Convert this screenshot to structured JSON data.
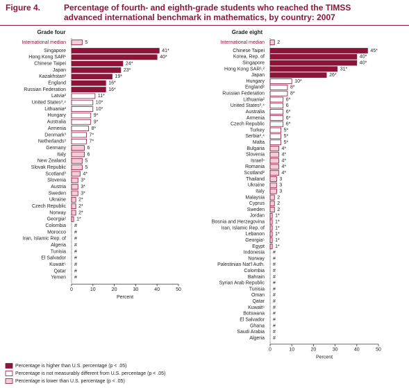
{
  "figure_label": "Figure 4.",
  "title": "Percentage of fourth- and eighth-grade students who reached the TIMSS advanced international benchmark in mathematics, by country: 2007",
  "legend": [
    {
      "label": "Percentage is higher than U.S. percentage (p < .05)",
      "color": "#8b1538"
    },
    {
      "label": "Percentage is not measurably different from U.S. percentage (p < .05)",
      "color": "#ffffff"
    },
    {
      "label": "Percentage is lower than U.S. percentage (p < .05)",
      "color": "#f6cbd8"
    }
  ],
  "chart_data": [
    {
      "type": "bar",
      "orientation": "horizontal",
      "title": "Grade four",
      "categories": [
        "International median",
        "Singapore",
        "Hong Kong SAR¹",
        "Chinese Taipei",
        "Japan",
        "Kazakhstan²",
        "England",
        "Russian Federation",
        "Latvia²",
        "United States³,⁴",
        "Lithuania²",
        "Hungary",
        "Australia",
        "Armenia",
        "Denmark³",
        "Netherlands³",
        "Germany",
        "Italy",
        "New Zealand",
        "Slovak Republic",
        "Scotland³",
        "Slovenia",
        "Austria",
        "Sweden",
        "Ukraine",
        "Czech Republic",
        "Norway",
        "Georgia²",
        "Colombia",
        "Morocco",
        "Iran, Islamic Rep. of",
        "Algeria",
        "Tunisia",
        "El Salvador",
        "Kuwait⁵",
        "Qatar",
        "Yemen"
      ],
      "values": [
        5,
        41,
        40,
        24,
        23,
        19,
        16,
        16,
        11,
        10,
        10,
        9,
        9,
        8,
        7,
        7,
        6,
        6,
        5,
        5,
        4,
        3,
        3,
        3,
        2,
        2,
        2,
        1,
        0,
        0,
        0,
        0,
        0,
        0,
        0,
        0,
        0
      ],
      "value_labels": [
        "5",
        "41*",
        "40*",
        "24*",
        "23*",
        "19*",
        "16*",
        "16*",
        "11*",
        "10*",
        "10*",
        "9*",
        "9*",
        "8*",
        "7*",
        "7*",
        "6",
        "6",
        "5",
        "5",
        "4*",
        "3*",
        "3*",
        "3*",
        "2*",
        "2*",
        "2*",
        "1*",
        "#",
        "#",
        "#",
        "#",
        "#",
        "#",
        "#",
        "#",
        "#"
      ],
      "colors": [
        "#f6cbd8",
        "#8b1538",
        "#8b1538",
        "#8b1538",
        "#8b1538",
        "#8b1538",
        "#8b1538",
        "#8b1538",
        "#ffffff",
        "#ffffff",
        "#ffffff",
        "#ffffff",
        "#ffffff",
        "#ffffff",
        "#ffffff",
        "#ffffff",
        "#f6cbd8",
        "#f6cbd8",
        "#f6cbd8",
        "#f6cbd8",
        "#f6cbd8",
        "#f6cbd8",
        "#f6cbd8",
        "#f6cbd8",
        "#f6cbd8",
        "#f6cbd8",
        "#f6cbd8",
        "#f6cbd8",
        "#f6cbd8",
        "#f6cbd8",
        "#f6cbd8",
        "#f6cbd8",
        "#f6cbd8",
        "#f6cbd8",
        "#f6cbd8",
        "#f6cbd8",
        "#f6cbd8"
      ],
      "xlim": [
        0,
        50
      ],
      "xticks": [
        0,
        10,
        20,
        30,
        40,
        50
      ],
      "xlabel": "Percent"
    },
    {
      "type": "bar",
      "orientation": "horizontal",
      "title": "Grade eight",
      "categories": [
        "International median",
        "Chinese Taipei",
        "Korea, Rep. of",
        "Singapore",
        "Hong Kong SAR¹,²",
        "Japan",
        "Hungary",
        "England²",
        "Russian Federation",
        "Lithuania²",
        "United States³,⁴",
        "Australia",
        "Armenia",
        "Czech Republic",
        "Turkey",
        "Serbia²,⁴",
        "Malta",
        "Bulgaria",
        "Slovenia",
        "Israel⁵",
        "Romania",
        "Scotland²",
        "Thailand",
        "Ukraine",
        "Italy",
        "Malaysia",
        "Cyprus",
        "Sweden",
        "Jordan",
        "Bosnia and Herzegovina",
        "Iran, Islamic Rep. of",
        "Lebanon",
        "Georgia⁵",
        "Egypt",
        "Indonesia",
        "Norway",
        "Palestinian Nat'l Auth.",
        "Colombia",
        "Bahrain",
        "Syrian Arab Republic",
        "Tunisia",
        "Oman",
        "Qatar",
        "Kuwait⁶",
        "Botswana",
        "El Salvador",
        "Ghana",
        "Saudi Arabia",
        "Algeria"
      ],
      "values": [
        2,
        45,
        40,
        40,
        31,
        26,
        10,
        8,
        8,
        6,
        6,
        6,
        6,
        6,
        5,
        5,
        5,
        4,
        4,
        4,
        4,
        4,
        3,
        3,
        3,
        2,
        2,
        2,
        1,
        1,
        1,
        1,
        1,
        1,
        0,
        0,
        0,
        0,
        0,
        0,
        0,
        0,
        0,
        0,
        0,
        0,
        0,
        0,
        0
      ],
      "value_labels": [
        "2",
        "45*",
        "40*",
        "40*",
        "31*",
        "26*",
        "10*",
        "8*",
        "8*",
        "6*",
        "6",
        "6*",
        "6*",
        "6*",
        "5*",
        "5*",
        "5*",
        "4*",
        "4*",
        "4*",
        "4*",
        "4*",
        "3",
        "3",
        "3",
        "2",
        "2",
        "2",
        "1*",
        "1*",
        "1*",
        "1*",
        "1*",
        "1*",
        "#",
        "#",
        "#",
        "#",
        "#",
        "#",
        "#",
        "#",
        "#",
        "#",
        "#",
        "#",
        "#",
        "#",
        "#"
      ],
      "colors": [
        "#f6cbd8",
        "#8b1538",
        "#8b1538",
        "#8b1538",
        "#8b1538",
        "#8b1538",
        "#ffffff",
        "#ffffff",
        "#ffffff",
        "#ffffff",
        "#ffffff",
        "#ffffff",
        "#ffffff",
        "#ffffff",
        "#ffffff",
        "#ffffff",
        "#ffffff",
        "#f6cbd8",
        "#f6cbd8",
        "#f6cbd8",
        "#f6cbd8",
        "#f6cbd8",
        "#f6cbd8",
        "#f6cbd8",
        "#f6cbd8",
        "#f6cbd8",
        "#f6cbd8",
        "#f6cbd8",
        "#f6cbd8",
        "#f6cbd8",
        "#f6cbd8",
        "#f6cbd8",
        "#f6cbd8",
        "#f6cbd8",
        "#f6cbd8",
        "#f6cbd8",
        "#f6cbd8",
        "#f6cbd8",
        "#f6cbd8",
        "#f6cbd8",
        "#f6cbd8",
        "#f6cbd8",
        "#f6cbd8",
        "#f6cbd8",
        "#f6cbd8",
        "#f6cbd8",
        "#f6cbd8",
        "#f6cbd8",
        "#f6cbd8"
      ],
      "xlim": [
        0,
        50
      ],
      "xticks": [
        0,
        10,
        20,
        30,
        40,
        50
      ],
      "xlabel": "Percent"
    }
  ]
}
